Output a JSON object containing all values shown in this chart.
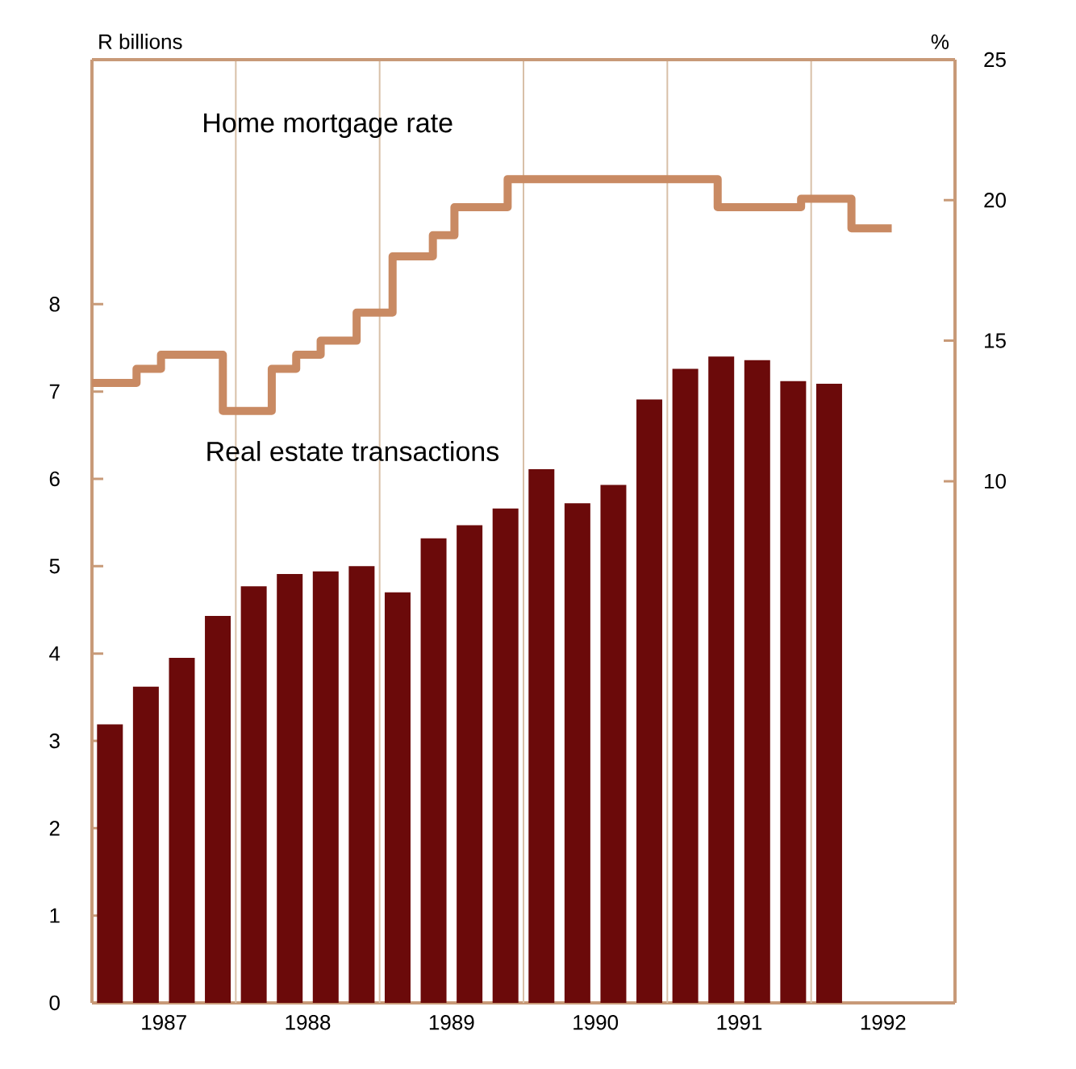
{
  "chart_data": {
    "type": "bar",
    "ylabel": "R billions",
    "y2label": "%",
    "xlim": [
      1987,
      1993
    ],
    "xticks": [
      {
        "value": 1987.5,
        "label": "1987"
      },
      {
        "value": 1988.5,
        "label": "1988"
      },
      {
        "value": 1989.5,
        "label": "1989"
      },
      {
        "value": 1990.5,
        "label": "1990"
      },
      {
        "value": 1991.5,
        "label": "1991"
      },
      {
        "value": 1992.5,
        "label": "1992"
      },
      {
        "value": 1988,
        "label": null
      },
      {
        "value": 1989,
        "label": null
      },
      {
        "value": 1990,
        "label": null
      },
      {
        "value": 1991,
        "label": null
      },
      {
        "value": 1992,
        "label": null
      }
    ],
    "grid": "x",
    "ylim": [
      0,
      10.8
    ],
    "yticks": [
      0,
      1,
      2,
      3,
      4,
      5,
      6,
      7,
      8
    ],
    "y2lim": [
      -8.56,
      25
    ],
    "y2ticks": [
      10,
      15,
      20,
      25
    ],
    "series": [
      {
        "name": "Real estate transactions",
        "color": "#6b0a0a",
        "x": [
          1987.125,
          1987.375,
          1987.625,
          1987.875,
          1988.125,
          1988.375,
          1988.625,
          1988.875,
          1989.125,
          1989.375,
          1989.625,
          1989.875,
          1990.125,
          1990.375,
          1990.625,
          1990.875,
          1991.125,
          1991.375,
          1991.625,
          1991.875,
          1992.125
        ],
        "values": [
          3.19,
          3.62,
          3.95,
          4.43,
          4.77,
          4.91,
          4.94,
          5.0,
          4.7,
          5.32,
          5.47,
          5.66,
          6.11,
          5.72,
          5.93,
          6.91,
          7.26,
          7.4,
          7.36,
          7.12,
          7.09
        ]
      },
      {
        "name": "Home mortgage rate",
        "type": "step",
        "axis": "y2",
        "color": "#c98a63",
        "x": [
          1987.0,
          1987.31,
          1987.48,
          1987.91,
          1988.25,
          1988.42,
          1988.59,
          1988.84,
          1989.09,
          1989.37,
          1989.52,
          1989.89,
          1991.35,
          1991.93,
          1992.28,
          1992.56
        ],
        "values": [
          13.5,
          14.0,
          14.5,
          12.5,
          14.0,
          14.5,
          15.0,
          16.0,
          18.0,
          18.75,
          19.75,
          20.75,
          19.75,
          20.05,
          19.0,
          19.0
        ]
      }
    ]
  }
}
